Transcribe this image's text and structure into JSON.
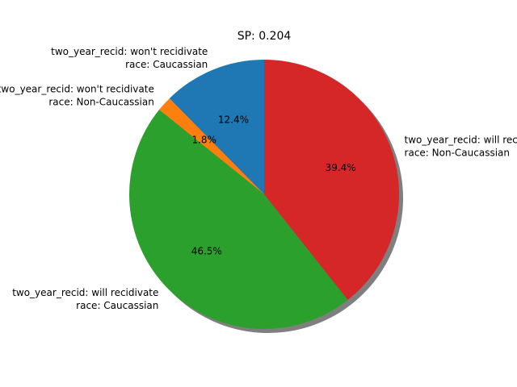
{
  "chart_data": {
    "type": "pie",
    "title": "SP: 0.204",
    "shadow": true,
    "start_angle_deg": 90,
    "direction": "counterclockwise",
    "slices": [
      {
        "label_line1": "two_year_recid: won't recidivate",
        "label_line2": "race: Caucassian",
        "value": 12.4,
        "pct_label": "12.4%",
        "color": "#1f77b4"
      },
      {
        "label_line1": "two_year_recid: won't recidivate",
        "label_line2": "race: Non-Caucassian",
        "value": 1.8,
        "pct_label": "1.8%",
        "color": "#ff7f0e"
      },
      {
        "label_line1": "two_year_recid: will recidivate",
        "label_line2": "race: Caucassian",
        "value": 46.5,
        "pct_label": "46.5%",
        "color": "#2ca02c"
      },
      {
        "label_line1": "two_year_recid: will recidivate",
        "label_line2": "race: Non-Caucassian",
        "value": 39.4,
        "pct_label": "39.4%",
        "color": "#d62728"
      }
    ]
  }
}
